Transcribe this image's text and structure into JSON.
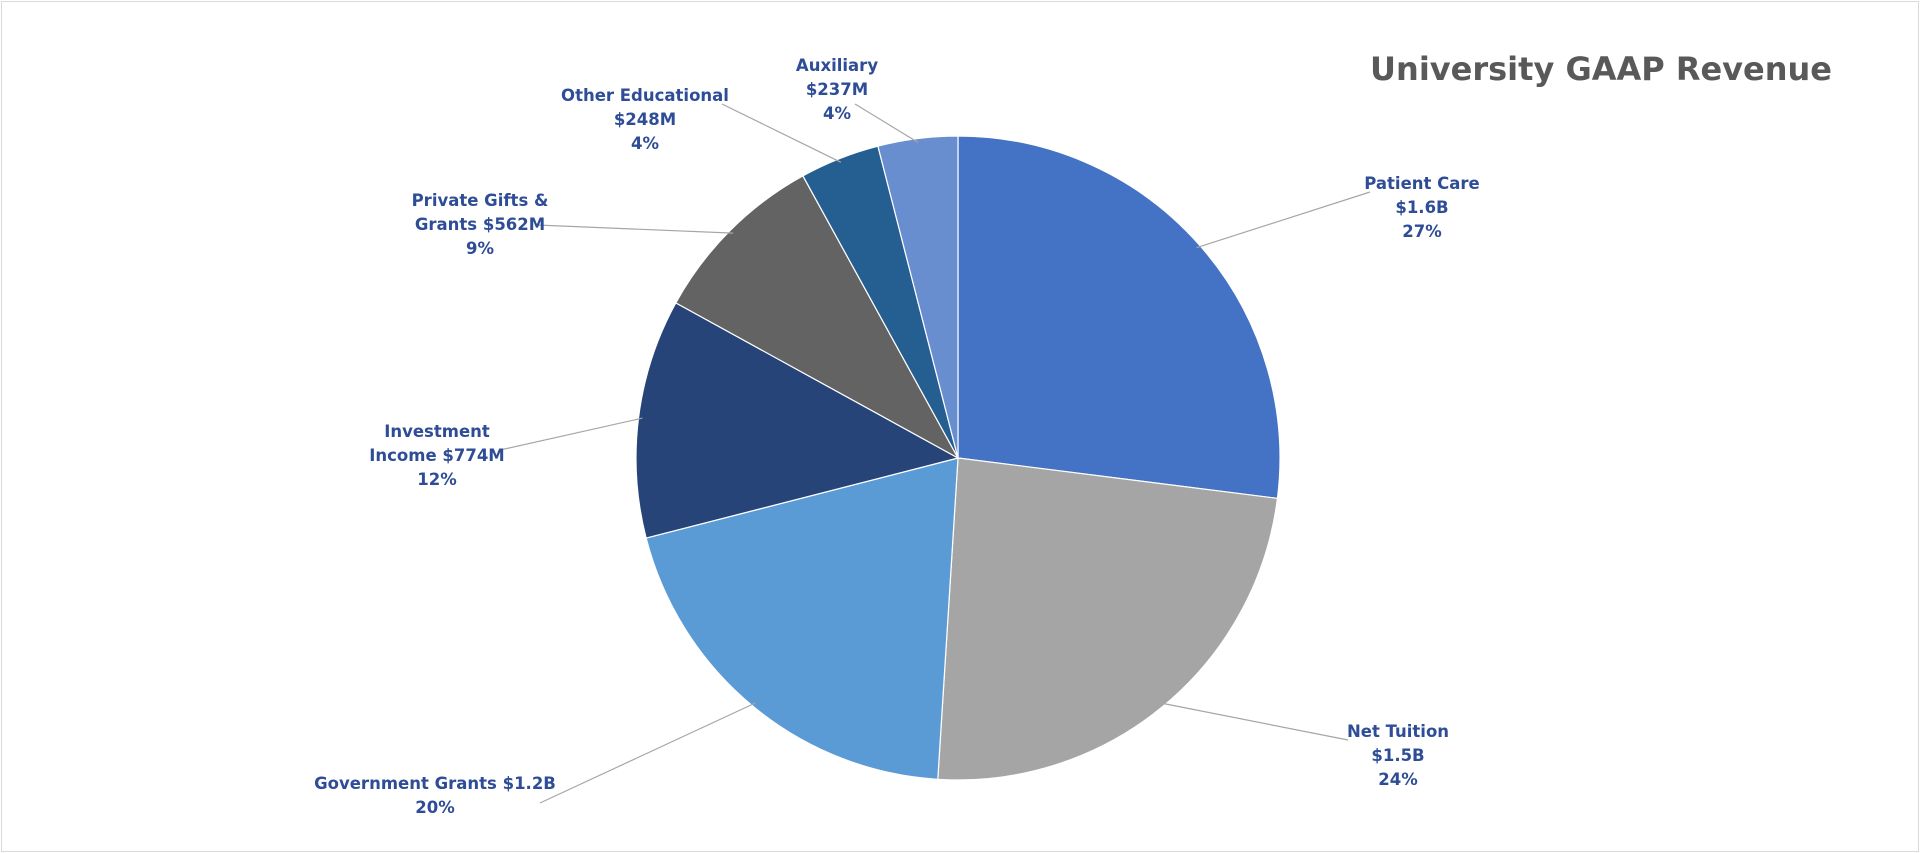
{
  "chart_data": {
    "type": "pie",
    "title": "University GAAP Revenue",
    "slices": [
      {
        "label": "Patient Care",
        "value_text": "$1.6B",
        "percent": 27,
        "pct_text": "27%",
        "color": "#4472c4"
      },
      {
        "label": "Net Tuition",
        "value_text": "$1.5B",
        "percent": 24,
        "pct_text": "24%",
        "color": "#a5a5a5"
      },
      {
        "label": "Government Grants",
        "value_text": "$1.2B",
        "percent": 20,
        "pct_text": "20%",
        "color": "#5b9bd5"
      },
      {
        "label": "Investment Income",
        "value_text": "$774M",
        "percent": 12,
        "pct_text": "12%",
        "color": "#264478"
      },
      {
        "label": "Private Gifts & Grants",
        "value_text": "$562M",
        "percent": 9,
        "pct_text": "9%",
        "color": "#636363"
      },
      {
        "label": "Other Educational",
        "value_text": "$248M",
        "percent": 4,
        "pct_text": "4%",
        "color": "#255e91"
      },
      {
        "label": "Auxiliary",
        "value_text": "$237M",
        "percent": 4,
        "pct_text": "4%",
        "color": "#698ed0"
      }
    ],
    "data_labels": [
      {
        "lines": [
          "Patient Care",
          "$1.6B",
          "27%"
        ]
      },
      {
        "lines": [
          "Net Tuition",
          "$1.5B",
          "24%"
        ]
      },
      {
        "lines": [
          "Government Grants $1.2B",
          "20%"
        ]
      },
      {
        "lines": [
          "Investment",
          "Income $774M",
          "12%"
        ]
      },
      {
        "lines": [
          "Private Gifts &",
          "Grants $562M",
          "9%"
        ]
      },
      {
        "lines": [
          "Other Educational",
          "$248M",
          "4%"
        ]
      },
      {
        "lines": [
          "Auxiliary",
          "$237M",
          "4%"
        ]
      }
    ],
    "legend": "none",
    "start_angle": "12 o'clock",
    "direction": "clockwise"
  }
}
